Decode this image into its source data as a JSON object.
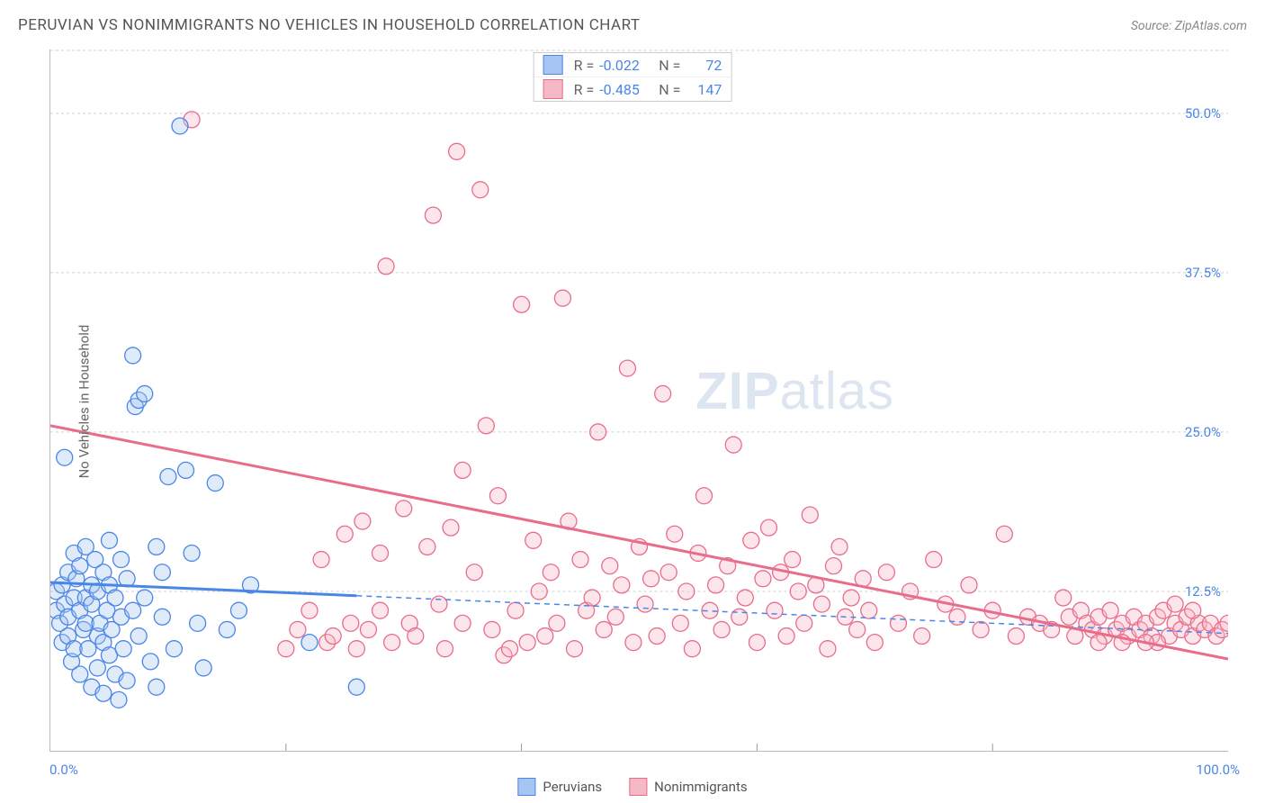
{
  "title": "PERUVIAN VS NONIMMIGRANTS NO VEHICLES IN HOUSEHOLD CORRELATION CHART",
  "source": "Source: ZipAtlas.com",
  "ylabel": "No Vehicles in Household",
  "watermark_bold": "ZIP",
  "watermark_rest": "atlas",
  "chart": {
    "type": "scatter",
    "xlim": [
      0,
      100
    ],
    "ylim": [
      0,
      55
    ],
    "x_ticks_labels": [
      "0.0%",
      "100.0%"
    ],
    "x_minor_count": 4,
    "y_ticks": [
      12.5,
      25.0,
      37.5,
      50.0
    ],
    "y_tick_labels": [
      "12.5%",
      "25.0%",
      "37.5%",
      "50.0%"
    ],
    "grid_color": "#d0d0d0",
    "background_color": "#ffffff",
    "marker_radius": 9,
    "marker_stroke_width": 1.3,
    "marker_fill_opacity": 0.35,
    "series": [
      {
        "name": "Peruvians",
        "color_stroke": "#4a86e8",
        "color_fill": "#a7c5f2",
        "R": "-0.022",
        "N": "72",
        "trend": {
          "x1": 0,
          "y1": 13.2,
          "x2": 100,
          "y2": 9.2,
          "solid_until_x": 26
        },
        "points": [
          [
            0.5,
            11
          ],
          [
            0.5,
            12.5
          ],
          [
            0.8,
            10
          ],
          [
            1,
            13
          ],
          [
            1,
            8.5
          ],
          [
            1.2,
            11.5
          ],
          [
            1.2,
            23
          ],
          [
            1.5,
            9
          ],
          [
            1.5,
            14
          ],
          [
            1.5,
            10.5
          ],
          [
            1.8,
            7
          ],
          [
            2,
            12
          ],
          [
            2,
            15.5
          ],
          [
            2,
            8
          ],
          [
            2.2,
            13.5
          ],
          [
            2.5,
            6
          ],
          [
            2.5,
            11
          ],
          [
            2.5,
            14.5
          ],
          [
            2.8,
            9.5
          ],
          [
            3,
            12
          ],
          [
            3,
            10
          ],
          [
            3,
            16
          ],
          [
            3.2,
            8
          ],
          [
            3.5,
            11.5
          ],
          [
            3.5,
            5
          ],
          [
            3.5,
            13
          ],
          [
            3.8,
            15
          ],
          [
            4,
            9
          ],
          [
            4,
            6.5
          ],
          [
            4,
            12.5
          ],
          [
            4.2,
            10
          ],
          [
            4.5,
            14
          ],
          [
            4.5,
            4.5
          ],
          [
            4.5,
            8.5
          ],
          [
            4.8,
            11
          ],
          [
            5,
            16.5
          ],
          [
            5,
            7.5
          ],
          [
            5,
            13
          ],
          [
            5.2,
            9.5
          ],
          [
            5.5,
            6
          ],
          [
            5.5,
            12
          ],
          [
            5.8,
            4
          ],
          [
            6,
            10.5
          ],
          [
            6,
            15
          ],
          [
            6.2,
            8
          ],
          [
            6.5,
            13.5
          ],
          [
            6.5,
            5.5
          ],
          [
            7,
            31
          ],
          [
            7,
            11
          ],
          [
            7.2,
            27
          ],
          [
            7.5,
            9
          ],
          [
            7.5,
            27.5
          ],
          [
            8,
            28
          ],
          [
            8,
            12
          ],
          [
            8.5,
            7
          ],
          [
            9,
            16
          ],
          [
            9,
            5
          ],
          [
            9.5,
            14
          ],
          [
            9.5,
            10.5
          ],
          [
            10,
            21.5
          ],
          [
            10.5,
            8
          ],
          [
            11,
            49
          ],
          [
            11.5,
            22
          ],
          [
            12,
            15.5
          ],
          [
            12.5,
            10
          ],
          [
            13,
            6.5
          ],
          [
            14,
            21
          ],
          [
            15,
            9.5
          ],
          [
            16,
            11
          ],
          [
            17,
            13
          ],
          [
            22,
            8.5
          ],
          [
            26,
            5
          ]
        ]
      },
      {
        "name": "Nonimmigrants",
        "color_stroke": "#e86d8a",
        "color_fill": "#f5b8c5",
        "R": "-0.485",
        "N": "147",
        "trend": {
          "x1": 0,
          "y1": 25.5,
          "x2": 100,
          "y2": 7.2,
          "solid_until_x": 100
        },
        "points": [
          [
            12,
            49.5
          ],
          [
            20,
            8
          ],
          [
            21,
            9.5
          ],
          [
            22,
            11
          ],
          [
            23,
            15
          ],
          [
            23.5,
            8.5
          ],
          [
            24,
            9
          ],
          [
            25,
            17
          ],
          [
            25.5,
            10
          ],
          [
            26,
            8
          ],
          [
            26.5,
            18
          ],
          [
            27,
            9.5
          ],
          [
            28,
            15.5
          ],
          [
            28,
            11
          ],
          [
            28.5,
            38
          ],
          [
            29,
            8.5
          ],
          [
            30,
            19
          ],
          [
            30.5,
            10
          ],
          [
            31,
            9
          ],
          [
            32,
            16
          ],
          [
            32.5,
            42
          ],
          [
            33,
            11.5
          ],
          [
            33.5,
            8
          ],
          [
            34,
            17.5
          ],
          [
            34.5,
            47
          ],
          [
            35,
            22
          ],
          [
            35,
            10
          ],
          [
            36,
            14
          ],
          [
            36.5,
            44
          ],
          [
            37,
            25.5
          ],
          [
            37.5,
            9.5
          ],
          [
            38,
            20
          ],
          [
            38.5,
            7.5
          ],
          [
            39,
            8
          ],
          [
            39.5,
            11
          ],
          [
            40,
            35
          ],
          [
            40.5,
            8.5
          ],
          [
            41,
            16.5
          ],
          [
            41.5,
            12.5
          ],
          [
            42,
            9
          ],
          [
            42.5,
            14
          ],
          [
            43,
            10
          ],
          [
            43.5,
            35.5
          ],
          [
            44,
            18
          ],
          [
            44.5,
            8
          ],
          [
            45,
            15
          ],
          [
            45.5,
            11
          ],
          [
            46,
            12
          ],
          [
            46.5,
            25
          ],
          [
            47,
            9.5
          ],
          [
            47.5,
            14.5
          ],
          [
            48,
            10.5
          ],
          [
            48.5,
            13
          ],
          [
            49,
            30
          ],
          [
            49.5,
            8.5
          ],
          [
            50,
            16
          ],
          [
            50.5,
            11.5
          ],
          [
            51,
            13.5
          ],
          [
            51.5,
            9
          ],
          [
            52,
            28
          ],
          [
            52.5,
            14
          ],
          [
            53,
            17
          ],
          [
            53.5,
            10
          ],
          [
            54,
            12.5
          ],
          [
            54.5,
            8
          ],
          [
            55,
            15.5
          ],
          [
            55.5,
            20
          ],
          [
            56,
            11
          ],
          [
            56.5,
            13
          ],
          [
            57,
            9.5
          ],
          [
            57.5,
            14.5
          ],
          [
            58,
            24
          ],
          [
            58.5,
            10.5
          ],
          [
            59,
            12
          ],
          [
            59.5,
            16.5
          ],
          [
            60,
            8.5
          ],
          [
            60.5,
            13.5
          ],
          [
            61,
            17.5
          ],
          [
            61.5,
            11
          ],
          [
            62,
            14
          ],
          [
            62.5,
            9
          ],
          [
            63,
            15
          ],
          [
            63.5,
            12.5
          ],
          [
            64,
            10
          ],
          [
            64.5,
            18.5
          ],
          [
            65,
            13
          ],
          [
            65.5,
            11.5
          ],
          [
            66,
            8
          ],
          [
            66.5,
            14.5
          ],
          [
            67,
            16
          ],
          [
            67.5,
            10.5
          ],
          [
            68,
            12
          ],
          [
            68.5,
            9.5
          ],
          [
            69,
            13.5
          ],
          [
            69.5,
            11
          ],
          [
            70,
            8.5
          ],
          [
            71,
            14
          ],
          [
            72,
            10
          ],
          [
            73,
            12.5
          ],
          [
            74,
            9
          ],
          [
            75,
            15
          ],
          [
            76,
            11.5
          ],
          [
            77,
            10.5
          ],
          [
            78,
            13
          ],
          [
            79,
            9.5
          ],
          [
            80,
            11
          ],
          [
            81,
            17
          ],
          [
            82,
            9
          ],
          [
            83,
            10.5
          ],
          [
            84,
            10
          ],
          [
            85,
            9.5
          ],
          [
            86,
            12
          ],
          [
            86.5,
            10.5
          ],
          [
            87,
            9
          ],
          [
            87.5,
            11
          ],
          [
            88,
            10
          ],
          [
            88.5,
            9.5
          ],
          [
            89,
            10.5
          ],
          [
            89.5,
            9
          ],
          [
            90,
            11
          ],
          [
            90.5,
            9.5
          ],
          [
            91,
            10
          ],
          [
            91.5,
            9
          ],
          [
            92,
            10.5
          ],
          [
            92.5,
            9.5
          ],
          [
            93,
            10
          ],
          [
            93.5,
            9
          ],
          [
            94,
            10.5
          ],
          [
            94.5,
            11
          ],
          [
            95,
            9
          ],
          [
            95.5,
            10
          ],
          [
            96,
            9.5
          ],
          [
            96.5,
            10.5
          ],
          [
            97,
            9
          ],
          [
            97.5,
            10
          ],
          [
            98,
            9.5
          ],
          [
            98.5,
            10
          ],
          [
            99,
            9
          ],
          [
            99.5,
            9.5
          ],
          [
            100,
            10
          ],
          [
            94,
            8.5
          ],
          [
            95.5,
            11.5
          ],
          [
            97,
            11
          ],
          [
            93,
            8.5
          ],
          [
            91,
            8.5
          ],
          [
            89,
            8.5
          ]
        ]
      }
    ]
  },
  "bottom_legend": [
    {
      "label": "Peruvians",
      "stroke": "#4a86e8",
      "fill": "#a7c5f2"
    },
    {
      "label": "Nonimmigrants",
      "stroke": "#e86d8a",
      "fill": "#f5b8c5"
    }
  ]
}
